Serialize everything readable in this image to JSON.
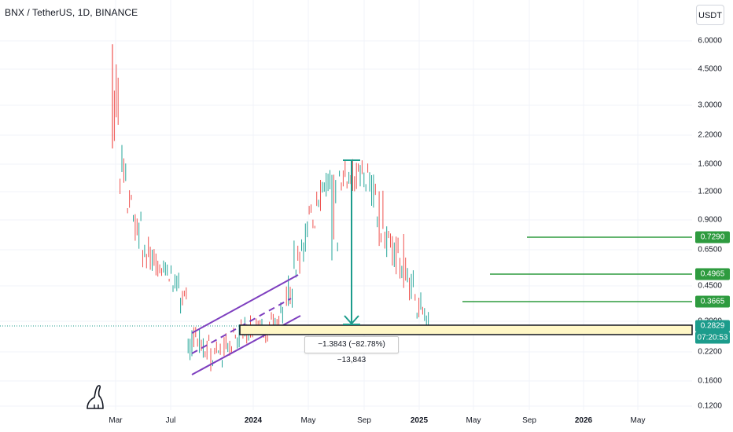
{
  "header": {
    "title": "BNX / TetherUS, 1D, BINANCE",
    "currency_button": "USDT"
  },
  "colors": {
    "up": "#26a69a",
    "down": "#ef5350",
    "channel": "#7e3fbf",
    "level": "#2e9b3f",
    "zone_fill": "#fff7c6",
    "arrow": "#1c9c8c"
  },
  "price_labels": [
    "6.0000",
    "4.5000",
    "3.0000",
    "2.2000",
    "1.6000",
    "1.2000",
    "0.9000",
    "0.6500",
    "0.4500",
    "0.3000",
    "0.2200",
    "0.1600",
    "0.1200"
  ],
  "time_labels": [
    {
      "label": "Mar",
      "bold": false
    },
    {
      "label": "Jul",
      "bold": false
    },
    {
      "label": "2024",
      "bold": true
    },
    {
      "label": "May",
      "bold": false
    },
    {
      "label": "Sep",
      "bold": false
    },
    {
      "label": "2025",
      "bold": true
    },
    {
      "label": "May",
      "bold": false
    },
    {
      "label": "Sep",
      "bold": false
    },
    {
      "label": "2026",
      "bold": true
    },
    {
      "label": "May",
      "bold": false
    }
  ],
  "levels": [
    {
      "price": "0.7290"
    },
    {
      "price": "0.4965"
    },
    {
      "price": "0.3665"
    }
  ],
  "current_price": {
    "value": "0.2829",
    "countdown": "07:20:53"
  },
  "measure": {
    "text": "−1.3843 (−82.78%) −13,843"
  },
  "chart_data": {
    "type": "candlestick",
    "symbol": "BNX / TetherUS",
    "interval": "1D",
    "exchange": "BINANCE",
    "scale": "log",
    "ylim": [
      0.12,
      6.0
    ],
    "x_ticks": [
      "Mar",
      "Jul",
      "2024",
      "May",
      "Sep",
      "2025",
      "May",
      "Sep",
      "2026",
      "May"
    ],
    "y_ticks": [
      6.0,
      4.5,
      3.0,
      2.2,
      1.6,
      1.2,
      0.9,
      0.65,
      0.45,
      0.3,
      0.22,
      0.16,
      0.12
    ],
    "series": [
      {
        "values": [
          [
            5.8,
            1.95
          ],
          [
            2.0,
            1.2
          ],
          [
            1.25,
            0.9
          ],
          [
            0.95,
            0.65
          ],
          [
            0.72,
            0.55
          ],
          [
            0.68,
            0.52
          ],
          [
            0.66,
            0.5
          ],
          [
            0.6,
            0.47
          ],
          [
            0.5,
            0.4
          ],
          [
            0.44,
            0.33
          ],
          [
            0.3,
            0.2
          ],
          [
            0.29,
            0.22
          ],
          [
            0.26,
            0.2
          ],
          [
            0.24,
            0.18
          ],
          [
            0.25,
            0.19
          ],
          [
            0.27,
            0.21
          ],
          [
            0.3,
            0.23
          ],
          [
            0.31,
            0.24
          ],
          [
            0.32,
            0.25
          ],
          [
            0.31,
            0.26
          ],
          [
            0.3,
            0.25
          ],
          [
            0.32,
            0.27
          ],
          [
            0.37,
            0.28
          ],
          [
            0.5,
            0.36
          ],
          [
            0.7,
            0.5
          ],
          [
            0.95,
            0.6
          ],
          [
            1.05,
            0.8
          ],
          [
            1.55,
            1.0
          ],
          [
            1.6,
            1.1
          ],
          [
            1.45,
            0.6
          ],
          [
            1.7,
            1.2
          ],
          [
            1.7,
            1.2
          ],
          [
            1.65,
            1.2
          ],
          [
            1.7,
            1.15
          ],
          [
            1.5,
            1.0
          ],
          [
            1.2,
            0.7
          ],
          [
            0.9,
            0.6
          ],
          [
            0.75,
            0.5
          ],
          [
            0.77,
            0.45
          ],
          [
            0.55,
            0.38
          ],
          [
            0.42,
            0.3
          ],
          [
            0.35,
            0.27
          ]
        ]
      }
    ],
    "levels": [
      0.729,
      0.4965,
      0.3665
    ],
    "last": 0.2829
  }
}
